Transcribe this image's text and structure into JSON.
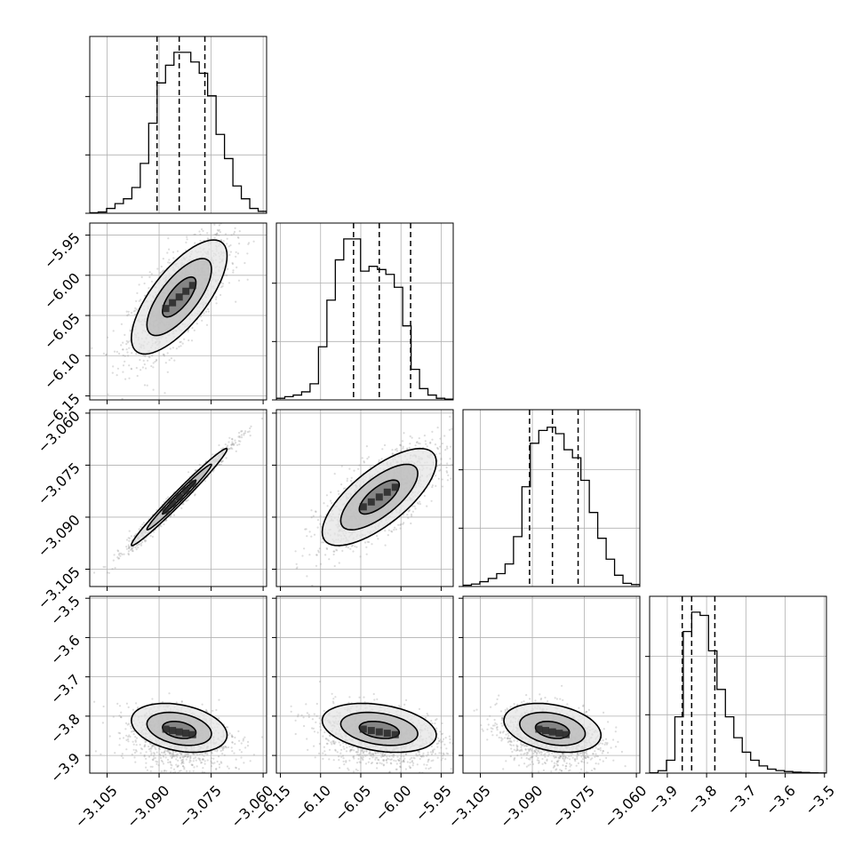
{
  "chart_data": {
    "type": "corner",
    "parameters": [
      {
        "range": [
          -3.11,
          -3.059
        ],
        "ticks": [
          -3.105,
          -3.09,
          -3.075,
          -3.06
        ],
        "tick_labels": [
          "−3.105",
          "−3.090",
          "−3.075",
          "−3.060"
        ],
        "quantiles": [
          -3.0906,
          -3.0842,
          -3.0768
        ],
        "hist": [
          0.003,
          0.008,
          0.03,
          0.06,
          0.09,
          0.16,
          0.31,
          0.56,
          0.81,
          0.92,
          1.0,
          1.0,
          0.94,
          0.87,
          0.73,
          0.49,
          0.34,
          0.17,
          0.09,
          0.03,
          0.012
        ]
      },
      {
        "range": [
          -6.155,
          -5.935
        ],
        "ticks": [
          -6.15,
          -6.1,
          -6.05,
          -6.0,
          -5.95
        ],
        "tick_labels": [
          "−6.15",
          "−6.10",
          "−6.05",
          "−6.00",
          "−5.95"
        ],
        "quantiles": [
          -6.059,
          -6.027,
          -5.988
        ],
        "hist": [
          0.01,
          0.02,
          0.03,
          0.05,
          0.1,
          0.33,
          0.62,
          0.87,
          1.0,
          1.0,
          0.8,
          0.83,
          0.81,
          0.78,
          0.7,
          0.46,
          0.19,
          0.07,
          0.03,
          0.01,
          0.005
        ]
      },
      {
        "range": [
          -3.11,
          -3.059
        ],
        "ticks": [
          -3.105,
          -3.09,
          -3.075,
          -3.06
        ],
        "tick_labels": [
          "−3.105",
          "−3.090",
          "−3.075",
          "−3.060"
        ],
        "quantiles": [
          -3.0908,
          -3.0842,
          -3.0768
        ],
        "hist": [
          0.008,
          0.015,
          0.03,
          0.05,
          0.08,
          0.14,
          0.31,
          0.62,
          0.89,
          0.97,
          0.99,
          0.95,
          0.85,
          0.8,
          0.66,
          0.46,
          0.3,
          0.17,
          0.07,
          0.02,
          0.012
        ]
      },
      {
        "range": [
          -3.945,
          -3.495
        ],
        "ticks": [
          -3.9,
          -3.8,
          -3.7,
          -3.6,
          -3.5
        ],
        "tick_labels": [
          "−3.9",
          "−3.8",
          "−3.7",
          "−3.6",
          "−3.5"
        ],
        "quantiles": [
          -3.862,
          -3.838,
          -3.779
        ],
        "hist": [
          0.002,
          0.015,
          0.08,
          0.35,
          0.88,
          1.0,
          0.98,
          0.76,
          0.52,
          0.35,
          0.22,
          0.13,
          0.08,
          0.045,
          0.025,
          0.016,
          0.01,
          0.006,
          0.004,
          0.002,
          0.001
        ]
      }
    ]
  }
}
